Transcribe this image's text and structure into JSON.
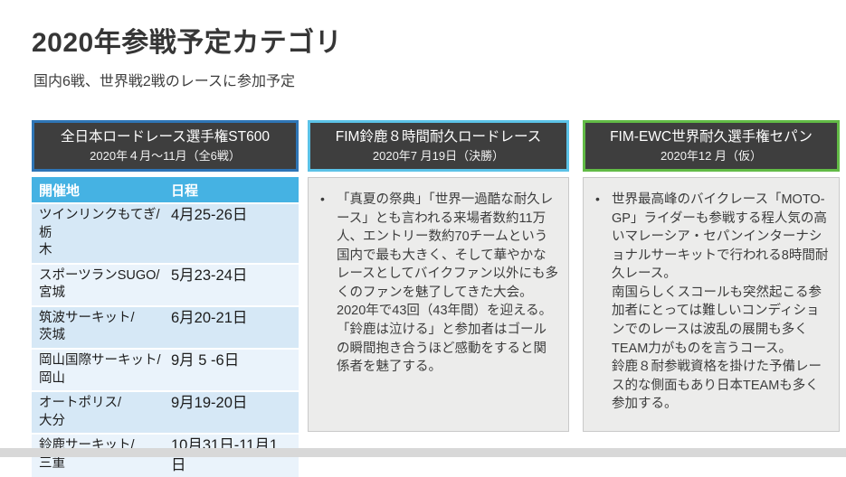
{
  "page": {
    "title": "2020年参戦予定カテゴリ",
    "subtitle": "国内6戦、世界戦2戦のレースに参加予定"
  },
  "columns": {
    "domestic": {
      "header_line1": "全日本ロードレース選手権ST600",
      "header_line2": "2020年４月～11月（全6戦）",
      "accent_color": "#2e75b6",
      "table": {
        "headers": [
          "開催地",
          "日程"
        ],
        "rows": [
          {
            "venue": "ツインリンクもてぎ/栃\n木",
            "date": "4月25-26日"
          },
          {
            "venue": "スポーツランSUGO/\n宮城",
            "date": "5月23-24日"
          },
          {
            "venue": "筑波サーキット/\n茨城",
            "date": "6月20-21日"
          },
          {
            "venue": "岡山国際サーキット/\n岡山",
            "date": "9月 5 -6日"
          },
          {
            "venue": "オートポリス/\n大分",
            "date": "9月19-20日"
          },
          {
            "venue": "鈴鹿サーキット/\n三重",
            "date": "10月31日-11月1\n日"
          }
        ]
      }
    },
    "suzuka8h": {
      "header_line1": "FIM鈴鹿８時間耐久ロードレース",
      "header_line2": "2020年7 月19日（決勝）",
      "accent_color": "#5bc2e7",
      "bullet": "•",
      "body": "「真夏の祭典」「世界一過酷な耐久レース」とも言われる来場者数約11万人、エントリー数約70チームという国内で最も大きく、そして華やかなレースとしてバイクファン以外にも多くのファンを魅了してきた大会。\n2020年で43回（43年間）を迎える。\n「鈴鹿は泣ける」と参加者はゴールの瞬間抱き合うほど感動をすると関係者を魅了する。"
    },
    "ewc_sepang": {
      "header_line1": "FIM-EWC世界耐久選手権セパン",
      "header_line2": "2020年12 月（仮）",
      "accent_color": "#62bb46",
      "bullet": "•",
      "body": "世界最高峰のバイクレース「MOTO-GP」ライダーも参戦する程人気の高いマレーシア・セパンインターナショナルサーキットで行われる8時間耐久レース。\n南国らしくスコールも突然起こる参加者にとっては難しいコンディションでのレースは波乱の展開も多くTEAM力がものを言うコース。\n鈴鹿８耐参戦資格を掛けた予備レース的な側面もあり日本TEAMも多く参加する。"
    }
  },
  "colors": {
    "domestic_accent": "#2e75b6",
    "suzuka_accent": "#5bc2e7",
    "sepang_accent": "#62bb46",
    "table_header_bg": "#45b2e3",
    "row_band": "#d6e8f6",
    "row_band_alt": "#eaf3fb",
    "header_box_bg": "#3e3e3e",
    "body_box_bg": "#ececeb",
    "bottom_bar": "#d8d8d8"
  }
}
